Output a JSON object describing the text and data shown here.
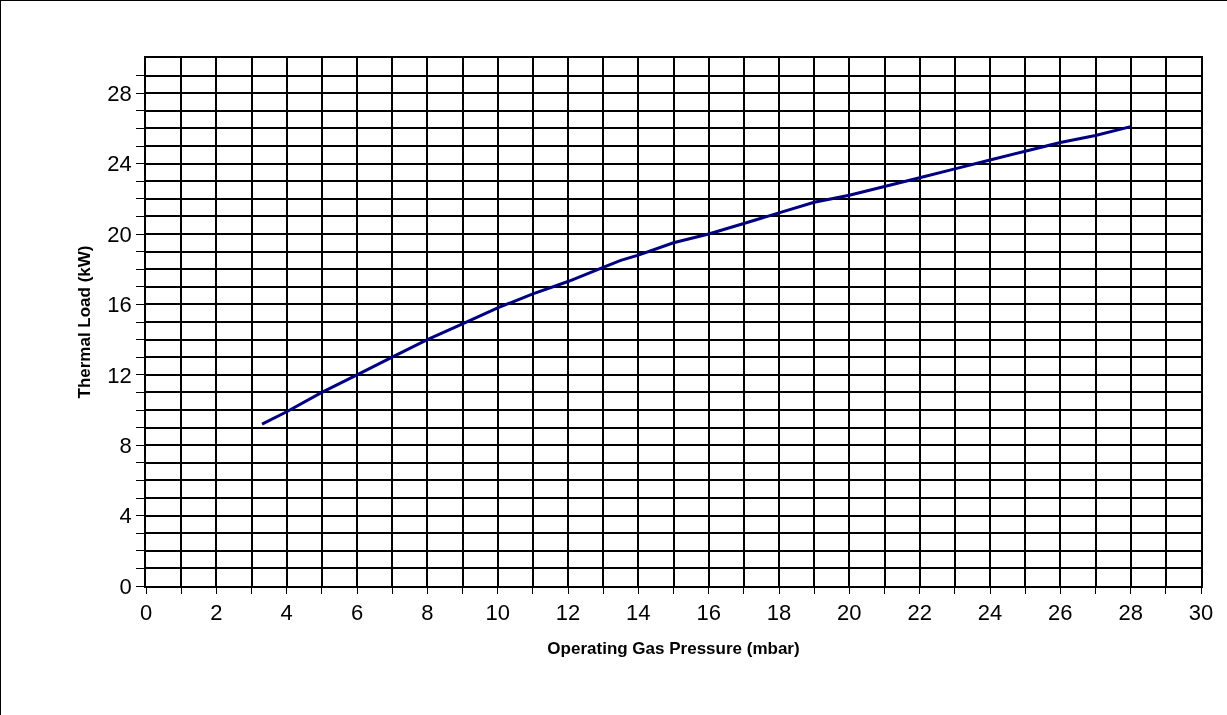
{
  "chart_data": {
    "type": "line",
    "xlabel": "Operating Gas Pressure (mbar)",
    "ylabel": "Thermal Load (kW)",
    "series": [
      {
        "color": "#000080",
        "x": [
          3.3,
          4,
          5,
          6,
          7,
          8,
          9,
          10,
          11,
          12,
          13,
          13.5,
          14,
          15,
          16,
          17,
          18,
          19,
          20,
          21,
          22,
          23,
          24,
          25,
          26,
          27,
          28
        ],
        "values": [
          9.2,
          9.9,
          11.0,
          12.0,
          13.0,
          14.0,
          14.9,
          15.8,
          16.6,
          17.3,
          18.1,
          18.5,
          18.8,
          19.5,
          20.0,
          20.6,
          21.2,
          21.8,
          22.2,
          22.7,
          23.2,
          23.7,
          24.2,
          24.7,
          25.2,
          25.6,
          26.1
        ]
      }
    ],
    "xlim": [
      0,
      30
    ],
    "ylim": [
      0,
      30
    ],
    "xticks": [
      0,
      {
        "value": 1,
        "label": null
      },
      2,
      {
        "value": 3,
        "label": null
      },
      4,
      {
        "value": 5,
        "label": null
      },
      6,
      {
        "value": 7,
        "label": null
      },
      8,
      {
        "value": 9,
        "label": null
      },
      10,
      {
        "value": 11,
        "label": null
      },
      12,
      {
        "value": 13,
        "label": null
      },
      14,
      {
        "value": 15,
        "label": null
      },
      16,
      {
        "value": 17,
        "label": null
      },
      18,
      {
        "value": 19,
        "label": null
      },
      20,
      {
        "value": 21,
        "label": null
      },
      22,
      {
        "value": 23,
        "label": null
      },
      24,
      {
        "value": 25,
        "label": null
      },
      26,
      {
        "value": 27,
        "label": null
      },
      28,
      {
        "value": 29,
        "label": null
      },
      30
    ],
    "yticks": [
      0,
      {
        "value": 1,
        "label": null
      },
      {
        "value": 2,
        "label": null
      },
      {
        "value": 3,
        "label": null
      },
      4,
      {
        "value": 5,
        "label": null
      },
      {
        "value": 6,
        "label": null
      },
      {
        "value": 7,
        "label": null
      },
      8,
      {
        "value": 9,
        "label": null
      },
      {
        "value": 10,
        "label": null
      },
      {
        "value": 11,
        "label": null
      },
      12,
      {
        "value": 13,
        "label": null
      },
      {
        "value": 14,
        "label": null
      },
      {
        "value": 15,
        "label": null
      },
      16,
      {
        "value": 17,
        "label": null
      },
      {
        "value": 18,
        "label": null
      },
      {
        "value": 19,
        "label": null
      },
      20,
      {
        "value": 21,
        "label": null
      },
      {
        "value": 22,
        "label": null
      },
      {
        "value": 23,
        "label": null
      },
      24,
      {
        "value": 25,
        "label": null
      },
      {
        "value": 26,
        "label": null
      },
      {
        "value": 27,
        "label": null
      },
      28,
      {
        "value": 29,
        "label": null
      }
    ],
    "grid": true,
    "marker": "none",
    "line_style": "solid"
  }
}
